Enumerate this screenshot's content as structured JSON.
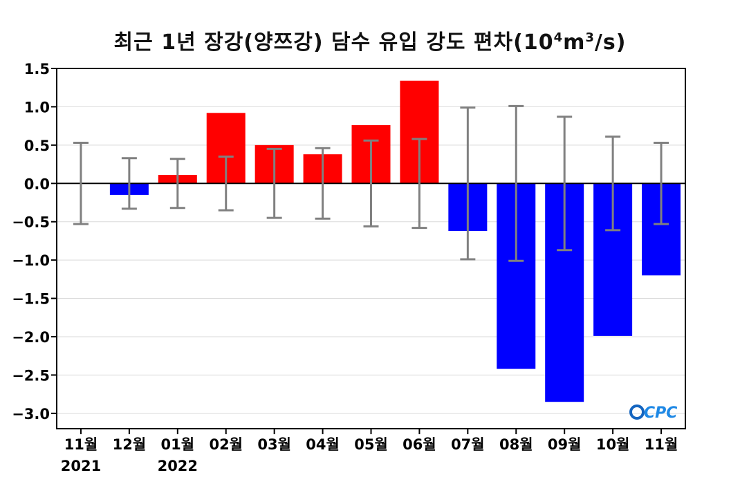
{
  "chart_data": {
    "type": "bar",
    "title_parts": {
      "main": "최근 1년 장강(양쯔강) 담수 유입 강도 편차(10",
      "exp1": "4",
      "mid": "m",
      "exp2": "3",
      "end": "/s)"
    },
    "categories": [
      "11월",
      "12월",
      "01월",
      "02월",
      "03월",
      "04월",
      "05월",
      "06월",
      "07월",
      "08월",
      "09월",
      "10월",
      "11월"
    ],
    "year_labels": [
      {
        "index": 0,
        "text": "2021"
      },
      {
        "index": 2,
        "text": "2022"
      }
    ],
    "values": [
      0.0,
      -0.15,
      0.11,
      0.92,
      0.5,
      0.38,
      0.76,
      1.34,
      -0.62,
      -2.42,
      -2.85,
      -1.99,
      -1.2
    ],
    "error_bars": [
      0.53,
      0.33,
      0.32,
      0.35,
      0.45,
      0.46,
      0.56,
      0.58,
      0.99,
      1.01,
      0.87,
      0.61,
      0.53
    ],
    "positive_color": "#ff0000",
    "negative_color": "#0000ff",
    "errorbar_color": "#808080",
    "ylim": [
      -3.2,
      1.5
    ],
    "yticks": [
      1.5,
      1.0,
      0.5,
      0.0,
      -0.5,
      -1.0,
      -1.5,
      -2.0,
      -2.5,
      -3.0
    ],
    "ytick_labels": [
      "1.5",
      "1.0",
      "0.5",
      "0.0",
      "−0.5",
      "−1.0",
      "−1.5",
      "−2.0",
      "−2.5",
      "−3.0"
    ],
    "grid": true,
    "logo": "OCPC"
  }
}
